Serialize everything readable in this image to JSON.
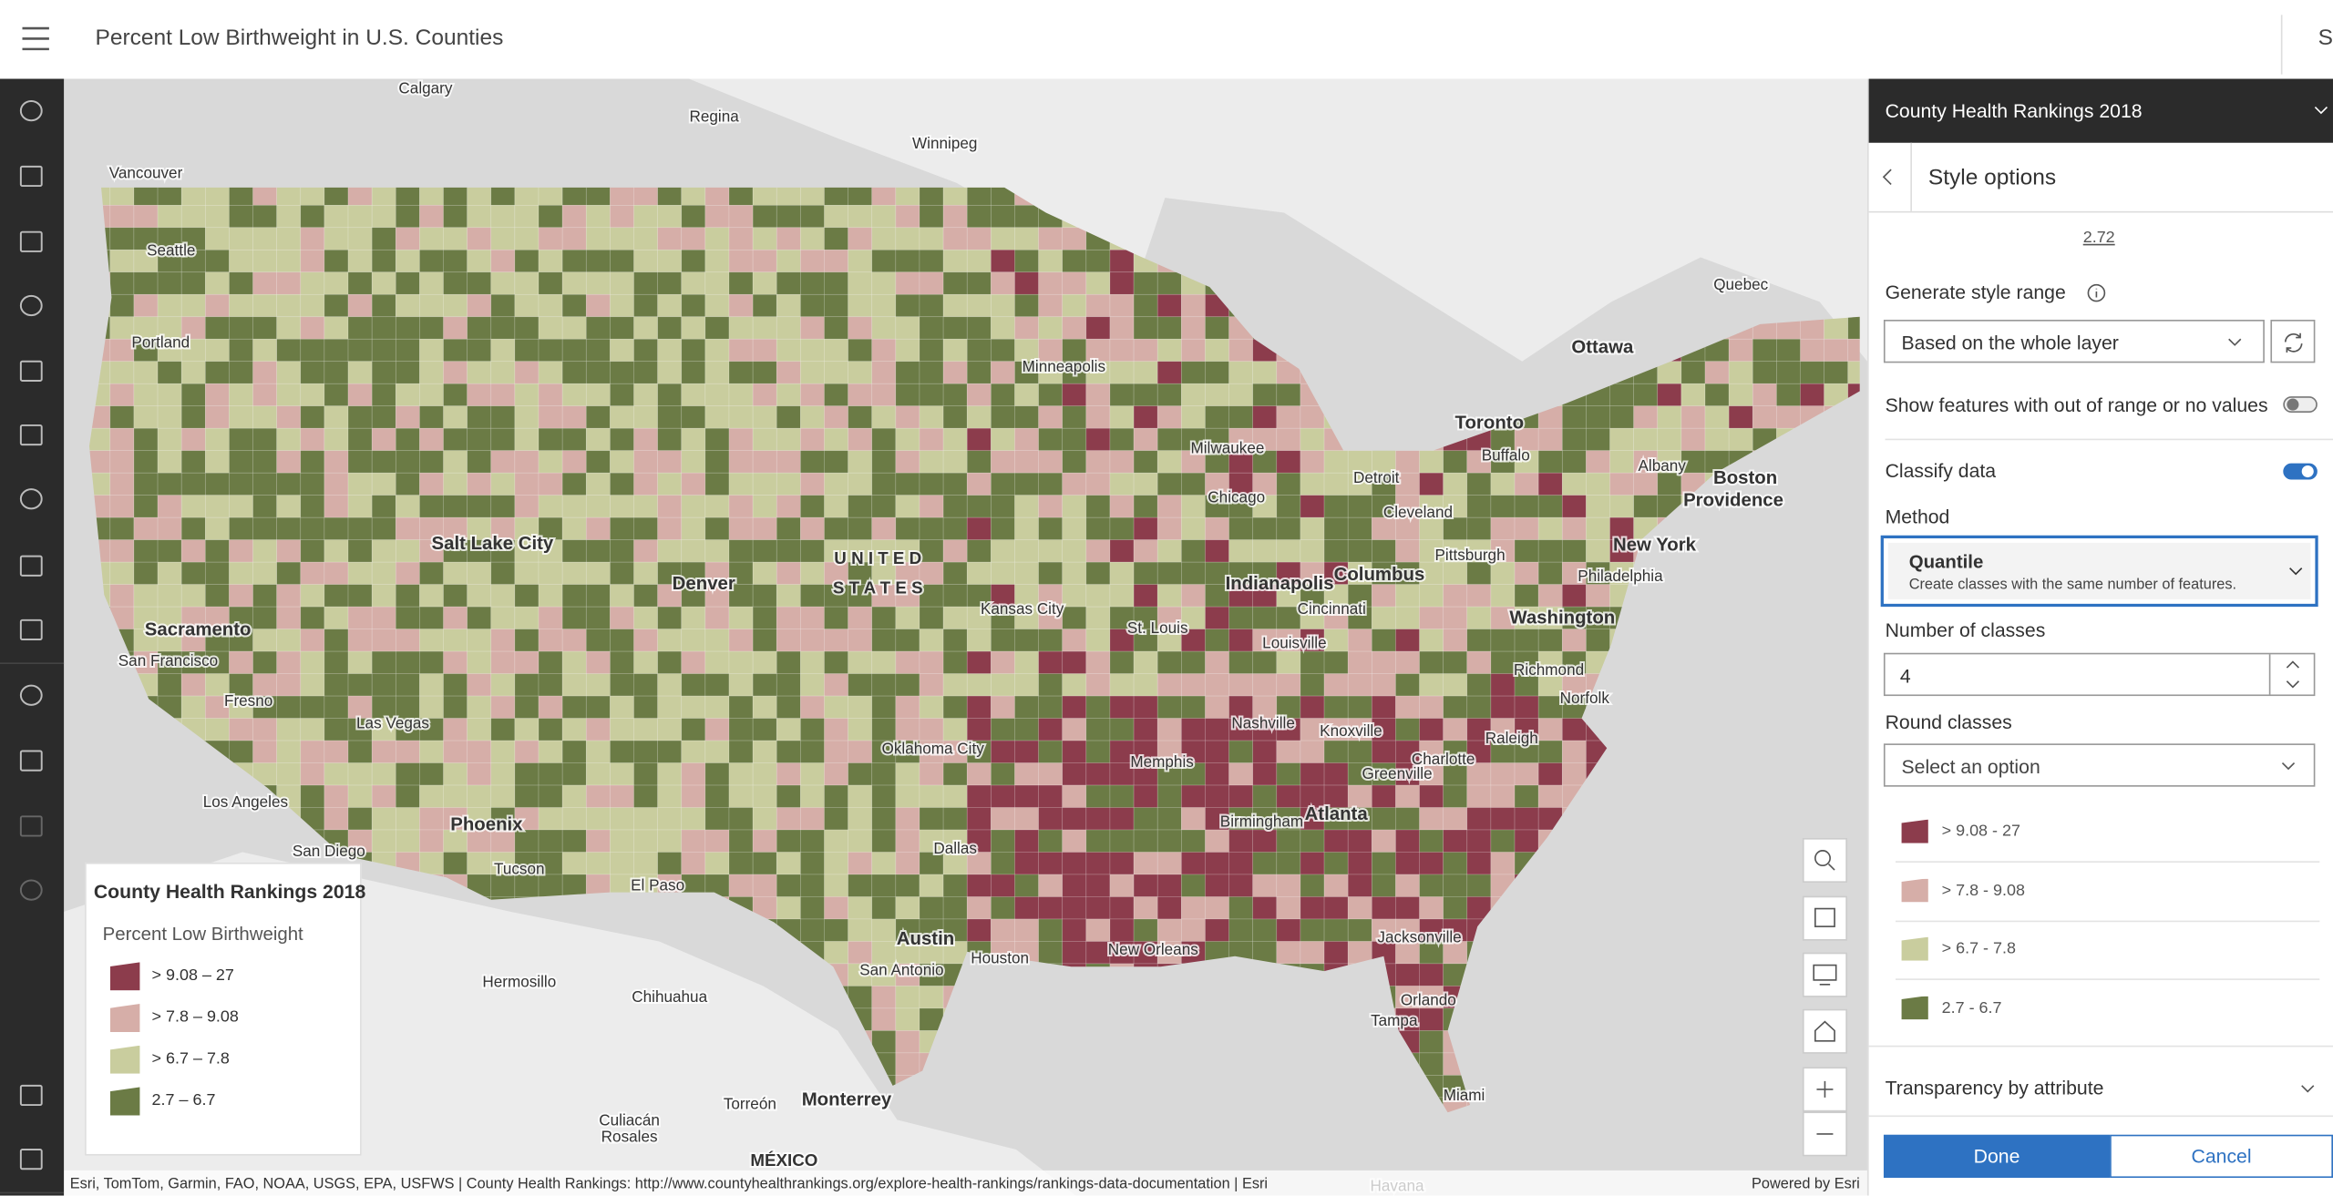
{
  "header": {
    "title": "Percent Low Birthweight in U.S. Counties",
    "right_text": "Si"
  },
  "map": {
    "labels": [
      "Calgary",
      "Regina",
      "Winnipeg",
      "Vancouver",
      "Seattle",
      "Portland",
      "Minneapolis",
      "Quebec",
      "Ottawa",
      "Toronto",
      "Buffalo",
      "Milwaukee",
      "Albany",
      "Boston",
      "Providence",
      "Detroit",
      "Chicago",
      "Cleveland",
      "New York",
      "Pittsburgh",
      "Salt Lake City",
      "U N I T E D",
      "S T A T E S",
      "Denver",
      "Indianapolis",
      "Columbus",
      "Philadelphia",
      "Cincinnati",
      "Washington",
      "Kansas City",
      "Sacramento",
      "St. Louis",
      "Louisville",
      "San Francisco",
      "Richmond",
      "Norfolk",
      "Fresno",
      "Nashville",
      "Knoxville",
      "Las Vegas",
      "Raleigh",
      "Charlotte",
      "Oklahoma City",
      "Memphis",
      "Greenville",
      "Atlanta",
      "Birmingham",
      "Los Angeles",
      "Phoenix",
      "San Diego",
      "Dallas",
      "Tucson",
      "El Paso",
      "Austin",
      "Jacksonville",
      "Houston",
      "San Antonio",
      "New Orleans",
      "Hermosillo",
      "Chihuahua",
      "Orlando",
      "Tampa",
      "Monterrey",
      "Torreón",
      "Miami",
      "Culiacán",
      "Rosales",
      "MÉXICO",
      "Havana"
    ],
    "attribution": "Esri, TomTom, Garmin, FAO, NOAA, USGS, EPA, USFWS | County Health Rankings: http://www.countyhealthrankings.org/explore-health-rankings/rankings-data-documentation | Esri",
    "powered_by": "Powered by Esri"
  },
  "legend": {
    "title": "County Health Rankings 2018",
    "subtitle": "Percent Low Birthweight",
    "items": [
      {
        "label": "> 9.08 – 27",
        "color": "#8c3c4c"
      },
      {
        "label": "> 7.8 – 9.08",
        "color": "#d6aea8"
      },
      {
        "label": "> 6.7 – 7.8",
        "color": "#c9cd9e"
      },
      {
        "label": "2.7 – 6.7",
        "color": "#6b7b45"
      }
    ]
  },
  "panel": {
    "layer_title": "County Health Rankings 2018",
    "title": "Style options",
    "value_link": "2.72",
    "generate_label": "Generate style range",
    "generate_select": "Based on the whole layer",
    "out_of_range_label": "Show features with out of range or no values",
    "out_of_range_on": false,
    "classify_label": "Classify data",
    "classify_on": true,
    "method_label": "Method",
    "method": "Quantile",
    "method_desc": "Create classes with the same number of features.",
    "classes_label": "Number of classes",
    "classes_value": "4",
    "round_label": "Round classes",
    "round_placeholder": "Select an option",
    "classes": [
      "> 9.08 - 27",
      "> 7.8 - 9.08",
      "> 6.7 - 7.8",
      "2.7 - 6.7"
    ],
    "transparency_label": "Transparency by attribute",
    "done": "Done",
    "cancel": "Cancel"
  }
}
